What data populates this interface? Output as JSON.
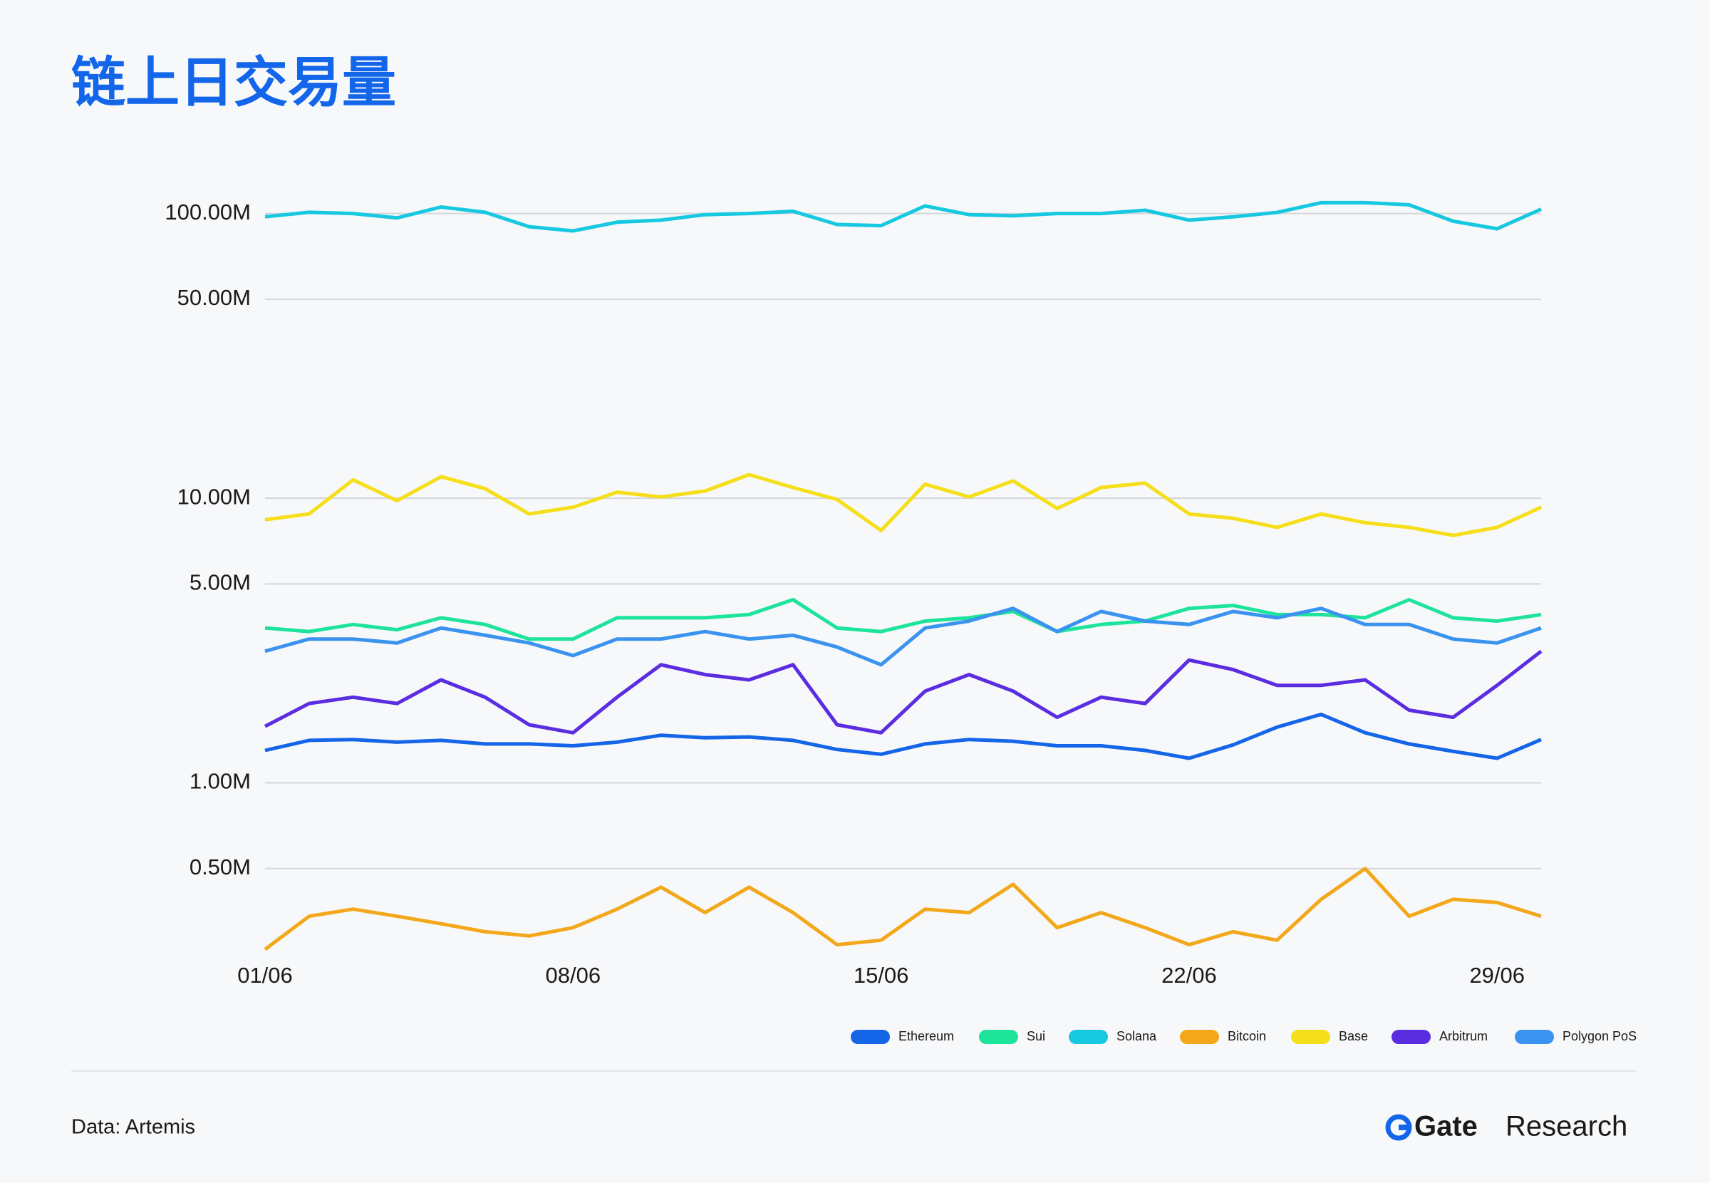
{
  "chart_data": {
    "type": "line",
    "title": "链上日交易量",
    "categories": [
      "01/06",
      null,
      null,
      null,
      null,
      null,
      null,
      "08/06",
      null,
      null,
      null,
      null,
      null,
      null,
      "15/06",
      null,
      null,
      null,
      null,
      null,
      null,
      "22/06",
      null,
      null,
      null,
      null,
      null,
      null,
      "29/06",
      null
    ],
    "yscale": "log",
    "grid": true,
    "legend": "bottom-right",
    "ylim": [
      250000,
      120000000
    ],
    "yticks": [
      {
        "value": 500000,
        "label": "0.50M"
      },
      {
        "value": 1000000,
        "label": "1.00M"
      },
      {
        "value": 5000000,
        "label": "5.00M"
      },
      {
        "value": 10000000,
        "label": "10.00M"
      },
      {
        "value": 50000000,
        "label": "50.00M"
      },
      {
        "value": 100000000,
        "label": "100.00M"
      }
    ],
    "series": [
      {
        "name": "Ethereum",
        "color": "#1565e8",
        "values": [
          1300000,
          1410000,
          1420000,
          1390000,
          1410000,
          1370000,
          1370000,
          1350000,
          1390000,
          1470000,
          1440000,
          1450000,
          1410000,
          1310000,
          1260000,
          1370000,
          1420000,
          1400000,
          1350000,
          1350000,
          1300000,
          1220000,
          1360000,
          1570000,
          1740000,
          1500000,
          1370000,
          1290000,
          1220000,
          1420000
        ]
      },
      {
        "name": "Sui",
        "color": "#1ee39a",
        "values": [
          3500000,
          3400000,
          3600000,
          3450000,
          3800000,
          3600000,
          3200000,
          3200000,
          3800000,
          3800000,
          3800000,
          3900000,
          4400000,
          3500000,
          3400000,
          3700000,
          3800000,
          4000000,
          3400000,
          3600000,
          3700000,
          4100000,
          4200000,
          3900000,
          3900000,
          3800000,
          4400000,
          3800000,
          3700000,
          3900000
        ]
      },
      {
        "name": "Solana",
        "color": "#16c8e0",
        "values": [
          97400000,
          101000000,
          100000000,
          96500000,
          105400000,
          101000000,
          89900000,
          86900000,
          93200000,
          94800000,
          99100000,
          100000000,
          101800000,
          91500000,
          90700000,
          106400000,
          99100000,
          98200000,
          100000000,
          100000000,
          102700000,
          94800000,
          97400000,
          100900000,
          109200000,
          109200000,
          107300000,
          94000000,
          88400000,
          103600000
        ]
      },
      {
        "name": "Bitcoin",
        "color": "#f2a81a",
        "values": [
          260000,
          340000,
          360000,
          340000,
          320000,
          300000,
          290000,
          310000,
          360000,
          430000,
          350000,
          430000,
          350000,
          270000,
          280000,
          360000,
          350000,
          440000,
          310000,
          350000,
          310000,
          270000,
          300000,
          280000,
          390000,
          500000,
          340000,
          390000,
          380000,
          340000
        ]
      },
      {
        "name": "Base",
        "color": "#f5df1a",
        "values": [
          8400000,
          8800000,
          11600000,
          9800000,
          11900000,
          10800000,
          8800000,
          9300000,
          10500000,
          10100000,
          10600000,
          12100000,
          10900000,
          9900000,
          7700000,
          11200000,
          10100000,
          11500000,
          9200000,
          10900000,
          11300000,
          8800000,
          8500000,
          7900000,
          8800000,
          8200000,
          7900000,
          7400000,
          7900000,
          9300000
        ]
      },
      {
        "name": "Arbitrum",
        "color": "#5a2de0",
        "values": [
          1580000,
          1900000,
          2000000,
          1900000,
          2300000,
          2000000,
          1600000,
          1500000,
          2000000,
          2600000,
          2400000,
          2300000,
          2600000,
          1600000,
          1500000,
          2100000,
          2400000,
          2100000,
          1700000,
          2000000,
          1900000,
          2700000,
          2500000,
          2200000,
          2200000,
          2300000,
          1800000,
          1700000,
          2200000,
          2900000
        ]
      },
      {
        "name": "Polygon PoS",
        "color": "#3a93ee",
        "values": [
          2900000,
          3200000,
          3200000,
          3100000,
          3500000,
          3300000,
          3100000,
          2800000,
          3200000,
          3200000,
          3400000,
          3200000,
          3300000,
          3000000,
          2600000,
          3500000,
          3700000,
          4100000,
          3400000,
          4000000,
          3700000,
          3600000,
          4000000,
          3800000,
          4100000,
          3600000,
          3600000,
          3200000,
          3100000,
          3500000
        ]
      }
    ]
  },
  "footer": {
    "source": "Data: Artemis",
    "brand_name": "Gate",
    "brand_suffix": "Research"
  }
}
